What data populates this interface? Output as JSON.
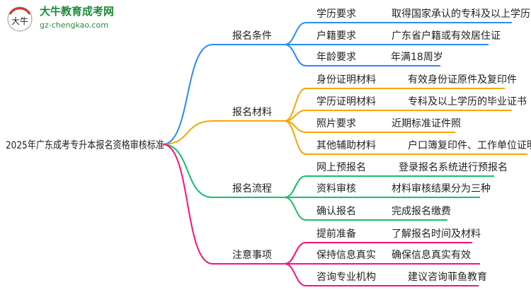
{
  "logo": {
    "badge_text": "大牛",
    "name": "大牛教育成考网",
    "url": "gz-chengkao.com"
  },
  "root": {
    "label": "2025年广东成考专升本报名资格审核标准"
  },
  "colors": {
    "blue": "#2b8cf5",
    "orange": "#f5a700",
    "green": "#14c16a",
    "pink": "#f5127a",
    "logo_green": "#1e8a3a",
    "logo_red": "#d9342b"
  },
  "branches": [
    {
      "label": "报名条件",
      "color": "#2b8cf5",
      "leaves": [
        {
          "label": "学历要求",
          "value": "取得国家承认的专科及以上学历"
        },
        {
          "label": "户籍要求",
          "value": "广东省户籍或有效居住证"
        },
        {
          "label": "年龄要求",
          "value": "年满18周岁"
        }
      ]
    },
    {
      "label": "报名材料",
      "color": "#f5a700",
      "leaves": [
        {
          "label": "身份证明材料",
          "value": "有效身份证原件及复印件"
        },
        {
          "label": "学历证明材料",
          "value": "专科及以上学历的毕业证书"
        },
        {
          "label": "照片要求",
          "value": "近期标准证件照"
        },
        {
          "label": "其他辅助材料",
          "value": "户口簿复印件、工作单位证明等"
        }
      ]
    },
    {
      "label": "报名流程",
      "color": "#14c16a",
      "leaves": [
        {
          "label": "网上预报名",
          "value": "登录报名系统进行预报名"
        },
        {
          "label": "资料审核",
          "value": "材料审核结果分为三种"
        },
        {
          "label": "确认报名",
          "value": "完成报名缴费"
        }
      ]
    },
    {
      "label": "注意事项",
      "color": "#f5127a",
      "leaves": [
        {
          "label": "提前准备",
          "value": "了解报名时间及材料"
        },
        {
          "label": "保持信息真实",
          "value": "确保信息真实有效"
        },
        {
          "label": "咨询专业机构",
          "value": "建议咨询菲鱼教育"
        }
      ]
    }
  ]
}
